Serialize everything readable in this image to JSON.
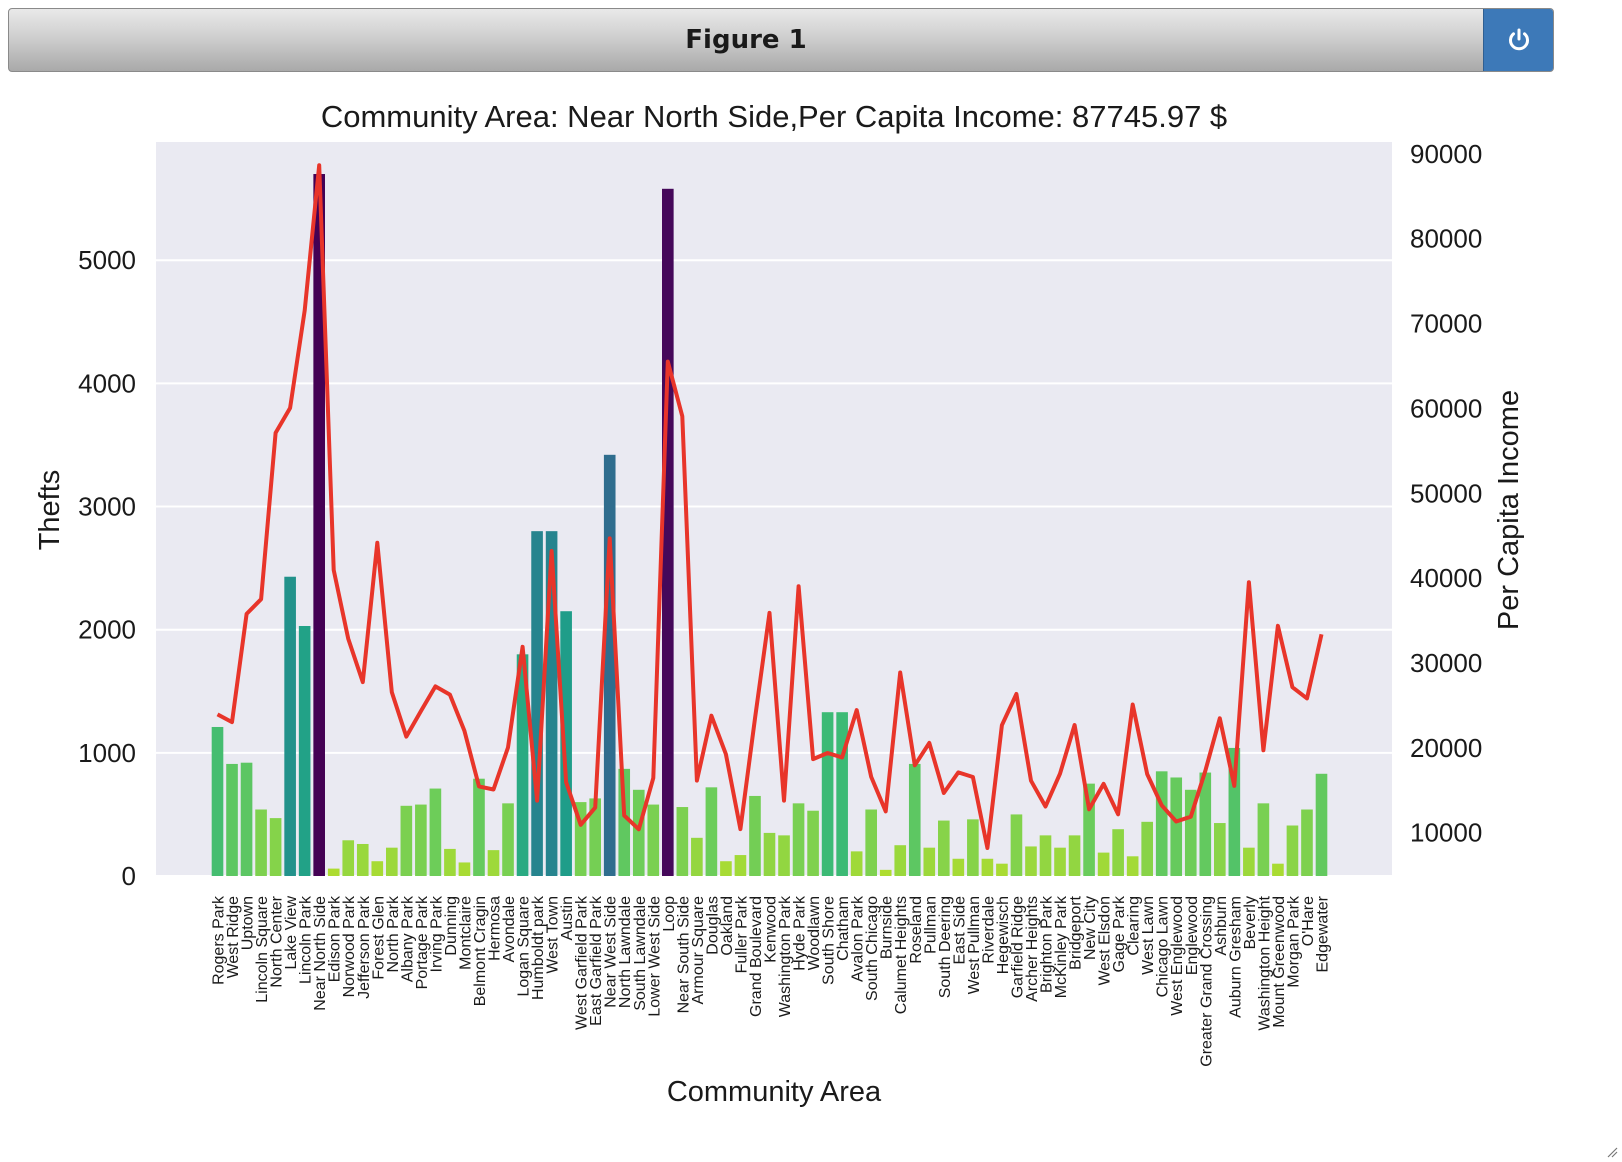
{
  "window": {
    "title": "Figure 1",
    "power_icon": "power-icon"
  },
  "chart_data": {
    "type": "bar",
    "title": "Community Area: Near North Side,Per Capita Income: 87745.97 $",
    "xlabel": "Community Area",
    "ylabel": "Thefts",
    "y2label": "Per Capita Income",
    "ylim": [
      0,
      5960
    ],
    "y2lim": [
      4900,
      91400
    ],
    "yticks": [
      0,
      1000,
      2000,
      3000,
      4000,
      5000
    ],
    "y2ticks": [
      10000,
      20000,
      30000,
      40000,
      50000,
      60000,
      70000,
      80000,
      90000
    ],
    "grid": true,
    "background": "#eaeaf2",
    "colormap": "viridis",
    "line_color": "#e8352a",
    "categories": [
      "Rogers Park",
      "West Ridge",
      "Uptown",
      "Lincoln Square",
      "North Center",
      "Lake View",
      "Lincoln Park",
      "Near North Side",
      "Edison Park",
      "Norwood Park",
      "Jefferson Park",
      "Forest Glen",
      "North Park",
      "Albany Park",
      "Portage Park",
      "Irving Park",
      "Dunning",
      "Montclaire",
      "Belmont Cragin",
      "Hermosa",
      "Avondale",
      "Logan Square",
      "Humboldt park",
      "West Town",
      "Austin",
      "West Garfield Park",
      "East Garfield Park",
      "Near West Side",
      "North Lawndale",
      "South Lawndale",
      "Lower West Side",
      "Loop",
      "Near South Side",
      "Armour Square",
      "Douglas",
      "Oakland",
      "Fuller Park",
      "Grand Boulevard",
      "Kenwood",
      "Washington Park",
      "Hyde Park",
      "Woodlawn",
      "South Shore",
      "Chatham",
      "Avalon Park",
      "South Chicago",
      "Burnside",
      "Calumet Heights",
      "Roseland",
      "Pullman",
      "South Deering",
      "East Side",
      "West Pullman",
      "Riverdale",
      "Hegewisch",
      "Garfield Ridge",
      "Archer Heights",
      "Brighton Park",
      "McKinley Park",
      "Bridgeport",
      "New City",
      "West Elsdon",
      "Gage Park",
      "Clearing",
      "West Lawn",
      "Chicago Lawn",
      "West Englewood",
      "Englewood",
      "Greater Grand Crossing",
      "Ashburn",
      "Auburn Gresham",
      "Beverly",
      "Washington Height",
      "Mount Greenwood",
      "Morgan Park",
      "O'Hare",
      "Edgewater"
    ],
    "series": [
      {
        "name": "Thefts",
        "type": "bar",
        "values": [
          1210,
          910,
          920,
          540,
          470,
          2430,
          2030,
          5700,
          60,
          290,
          260,
          120,
          230,
          570,
          580,
          710,
          220,
          110,
          790,
          210,
          590,
          1800,
          2800,
          2800,
          2150,
          600,
          630,
          3420,
          870,
          700,
          580,
          5580,
          560,
          310,
          720,
          120,
          170,
          650,
          350,
          330,
          590,
          530,
          1330,
          1330,
          200,
          540,
          50,
          250,
          910,
          230,
          450,
          140,
          460,
          140,
          100,
          500,
          240,
          330,
          230,
          330,
          750,
          190,
          380,
          160,
          440,
          850,
          800,
          700,
          840,
          430,
          1040,
          230,
          590,
          100,
          410,
          540,
          830
        ]
      },
      {
        "name": "Per Capita Income",
        "type": "line",
        "values": [
          23940,
          23040,
          35787,
          37524,
          57123,
          60058,
          71551,
          88669,
          40959,
          32875,
          27751,
          44164,
          26576,
          21323,
          24336,
          27249,
          26282,
          22014,
          15461,
          15089,
          20039,
          31908,
          13781,
          43198,
          15957,
          10934,
          12961,
          44689,
          12034,
          10402,
          16444,
          65526,
          59077,
          16148,
          23791,
          19252,
          10432,
          23472,
          35911,
          13785,
          39056,
          18672,
          19398,
          18881,
          24454,
          16579,
          12515,
          28887,
          17949,
          20588,
          14685,
          17104,
          16563,
          8201,
          22677,
          26353,
          16134,
          13089,
          16954,
          22694,
          12765,
          15754,
          12171,
          25113,
          16907,
          13231,
          11317,
          11888,
          17285,
          23482,
          15528,
          39523,
          19713,
          34381,
          27149,
          25828,
          33385
        ]
      }
    ]
  }
}
